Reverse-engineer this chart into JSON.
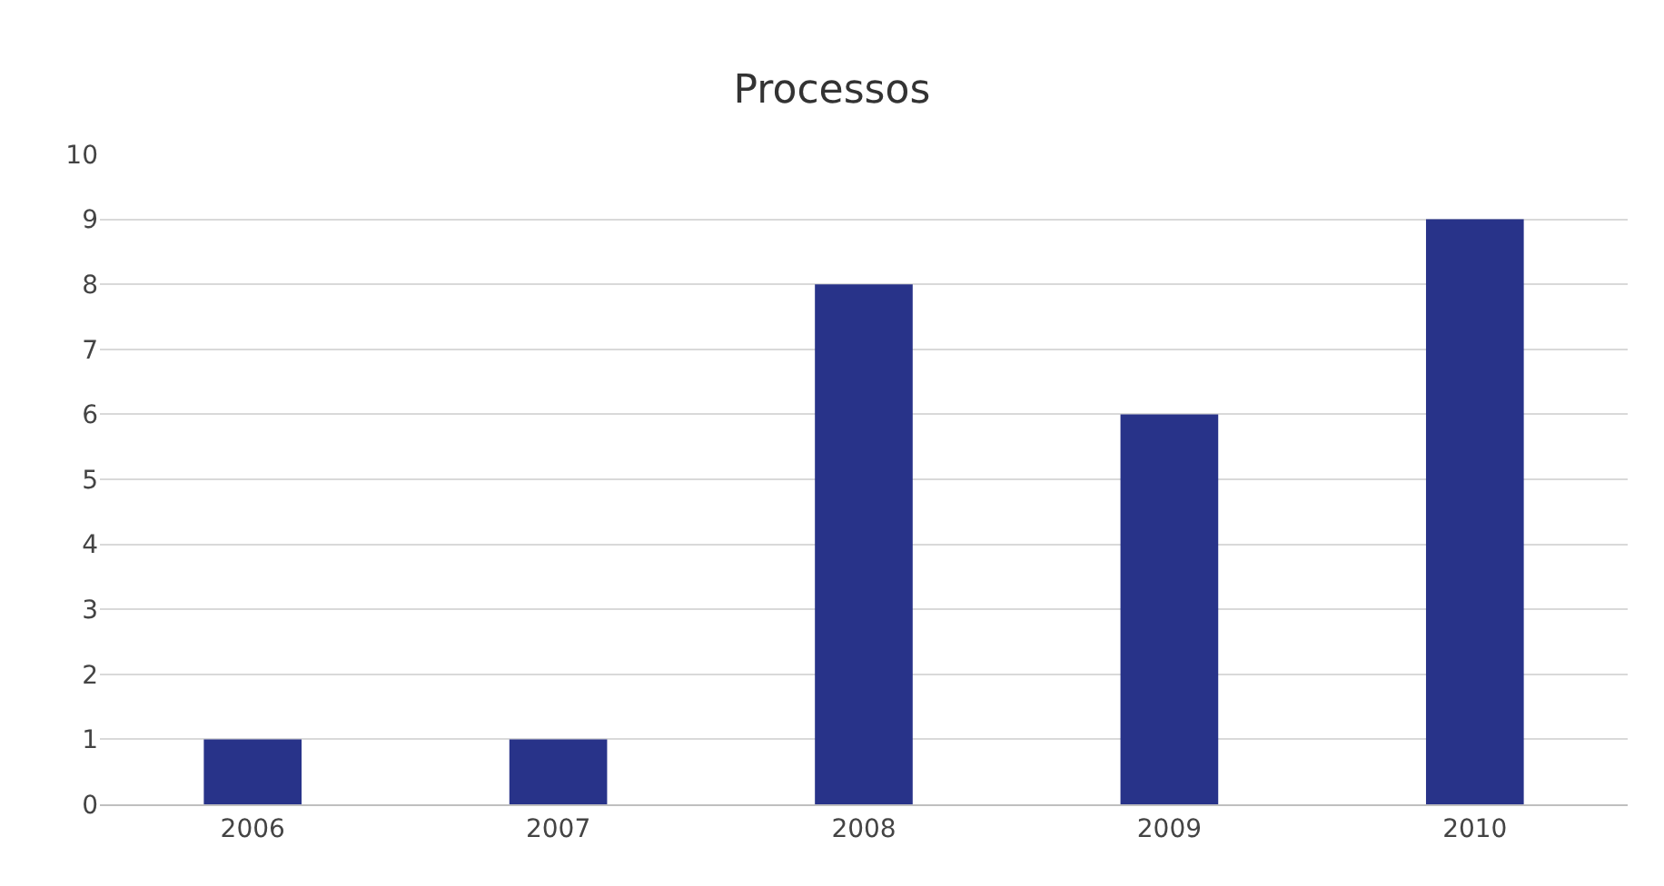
{
  "chart_data": {
    "type": "bar",
    "title": "Processos",
    "categories": [
      "2006",
      "2007",
      "2008",
      "2009",
      "2010"
    ],
    "values": [
      1,
      1,
      8,
      6,
      9
    ],
    "color": "#283389",
    "ylim": [
      0,
      10
    ],
    "yticks": [
      0,
      1,
      2,
      3,
      4,
      5,
      6,
      7,
      8,
      9,
      10
    ],
    "grid": "y",
    "legend": false
  }
}
